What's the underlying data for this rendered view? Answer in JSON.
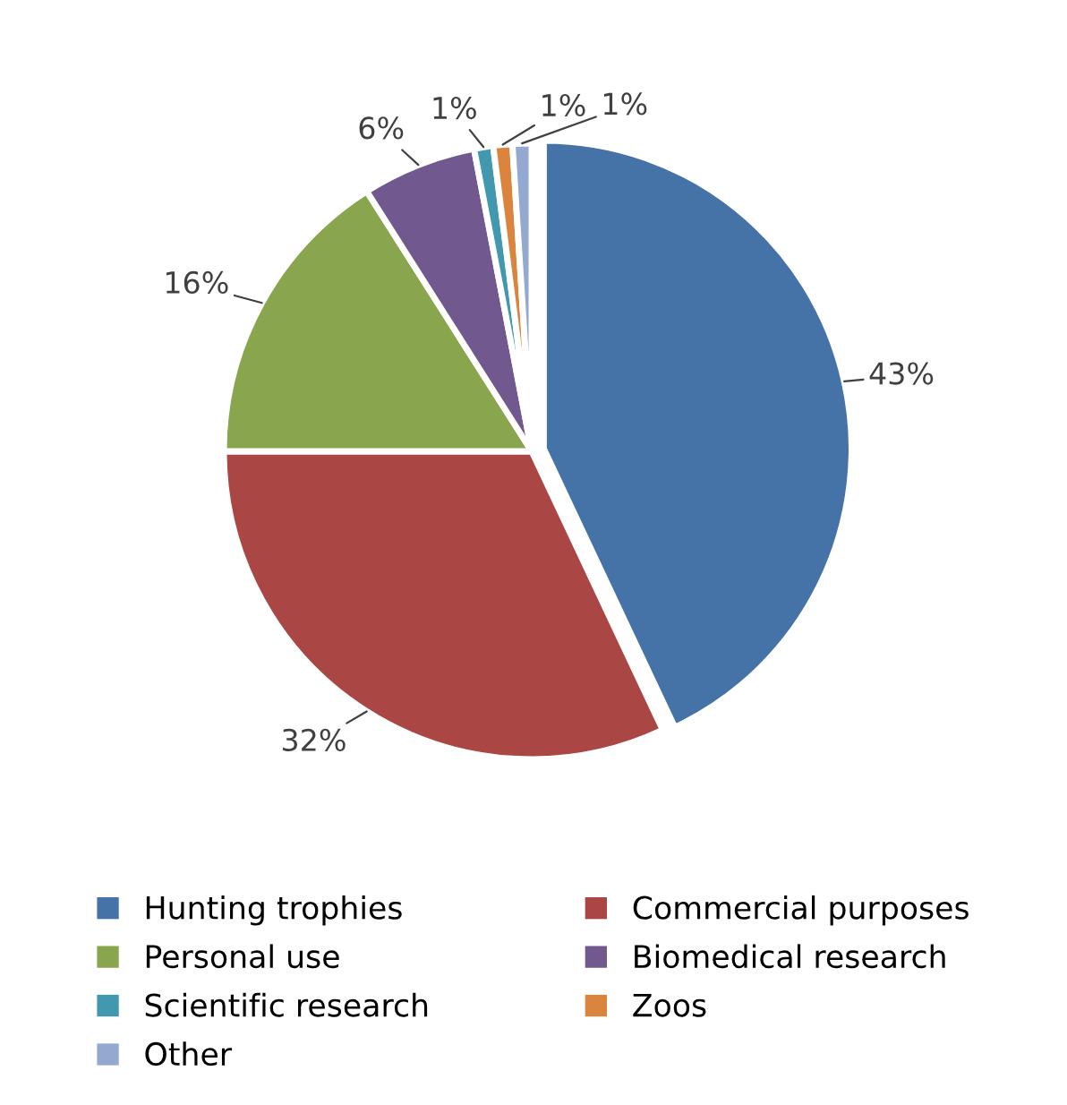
{
  "chart_data": {
    "type": "pie",
    "categories": [
      "Hunting trophies",
      "Commercial purposes",
      "Personal use",
      "Biomedical research",
      "Scientific research",
      "Zoos",
      "Other"
    ],
    "values": [
      43,
      32,
      16,
      6,
      1,
      1,
      1
    ],
    "colors": [
      "#4572a7",
      "#aa4643",
      "#89a54e",
      "#71588f",
      "#4198af",
      "#db843d",
      "#93a9cf"
    ],
    "value_labels": [
      "43%",
      "32%",
      "16%",
      "6%",
      "1%",
      "1%",
      "1%"
    ],
    "legend": "bottom"
  }
}
